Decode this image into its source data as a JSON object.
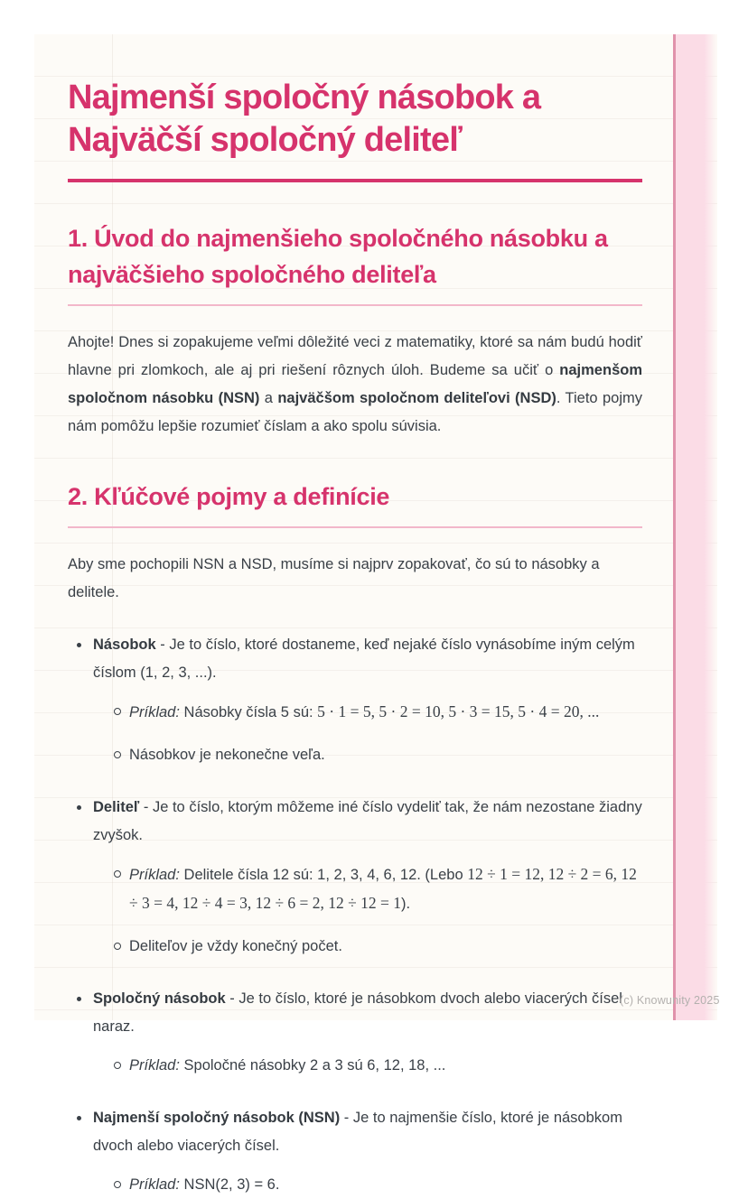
{
  "title": {
    "line1": "Najmenší spoločný násobok a",
    "line2": "Najväčší spoločný deliteľ"
  },
  "watermark": "(c) Knowunity 2025",
  "colors": {
    "accent_pink": "#d6336c",
    "light_rule_pink": "#f2b7ca",
    "strip_fill": "#fbdce6",
    "strip_border": "#e092ab",
    "page_background": "#fdfbf7",
    "body_text": "#3a4047",
    "watermark_gray": "#b3b0ae"
  },
  "section1": {
    "heading": "1. Úvod do najmenšieho spoločného násobku a najväčšieho spoločného deliteľa",
    "intro": {
      "t1": "Ahojte! Dnes si zopakujeme veľmi dôležité veci z matematiky, ktoré sa nám budú hodiť hlavne pri zlomkoch, ale aj pri riešení rôznych úloh. Budeme sa učiť o ",
      "b1": "najmenšom spoločnom násobku (NSN)",
      "t2": " a ",
      "b2": "najväčšom spoločnom deliteľovi (NSD)",
      "t3": ". Tieto pojmy nám pomôžu lepšie rozumieť číslam a ako spolu súvisia."
    }
  },
  "section2": {
    "heading": "2. Kľúčové pojmy a definície",
    "intro": "Aby sme pochopili NSN a NSD, musíme si najprv zopakovať, čo sú to násobky a delitele.",
    "items": [
      {
        "term": "Násobok",
        "def": " - Je to číslo, ktoré dostaneme, keď nejaké číslo vynásobíme iným celým číslom (1, 2, 3, ...).",
        "sub1_label": "Príklad:",
        "sub1_text": " Násobky čísla 5 sú: ",
        "sub1_math": "5 · 1 = 5, 5 · 2 = 10, 5 · 3 = 15, 5 · 4 = 20, ...",
        "sub2_text": "Násobkov je nekonečne veľa."
      },
      {
        "term": "Deliteľ",
        "def": " - Je to číslo, ktorým môžeme iné číslo vydeliť tak, že nám nezostane žiadny zvyšok.",
        "sub1_label": "Príklad:",
        "sub1_text": " Delitele čísla 12 sú: 1, 2, 3, 4, 6, 12. (Lebo ",
        "sub1_math": "12 ÷ 1 = 12, 12 ÷ 2 = 6, 12 ÷ 3 = 4, 12 ÷ 4 = 3, 12 ÷ 6 = 2, 12 ÷ 12 = 1",
        "sub1_tail": ").",
        "sub2_text": "Deliteľov je vždy konečný počet."
      },
      {
        "term": "Spoločný násobok",
        "def": " - Je to číslo, ktoré je násobkom dvoch alebo viacerých čísel naraz.",
        "sub1_label": "Príklad:",
        "sub1_text": " Spoločné násobky 2 a 3 sú 6, 12, 18, ..."
      },
      {
        "term": "Najmenší spoločný násobok (NSN)",
        "def": " - Je to najmenšie číslo, ktoré je násobkom dvoch alebo viacerých čísel.",
        "sub1_label": "Príklad:",
        "sub1_text": " NSN(2, 3) = 6."
      }
    ]
  }
}
